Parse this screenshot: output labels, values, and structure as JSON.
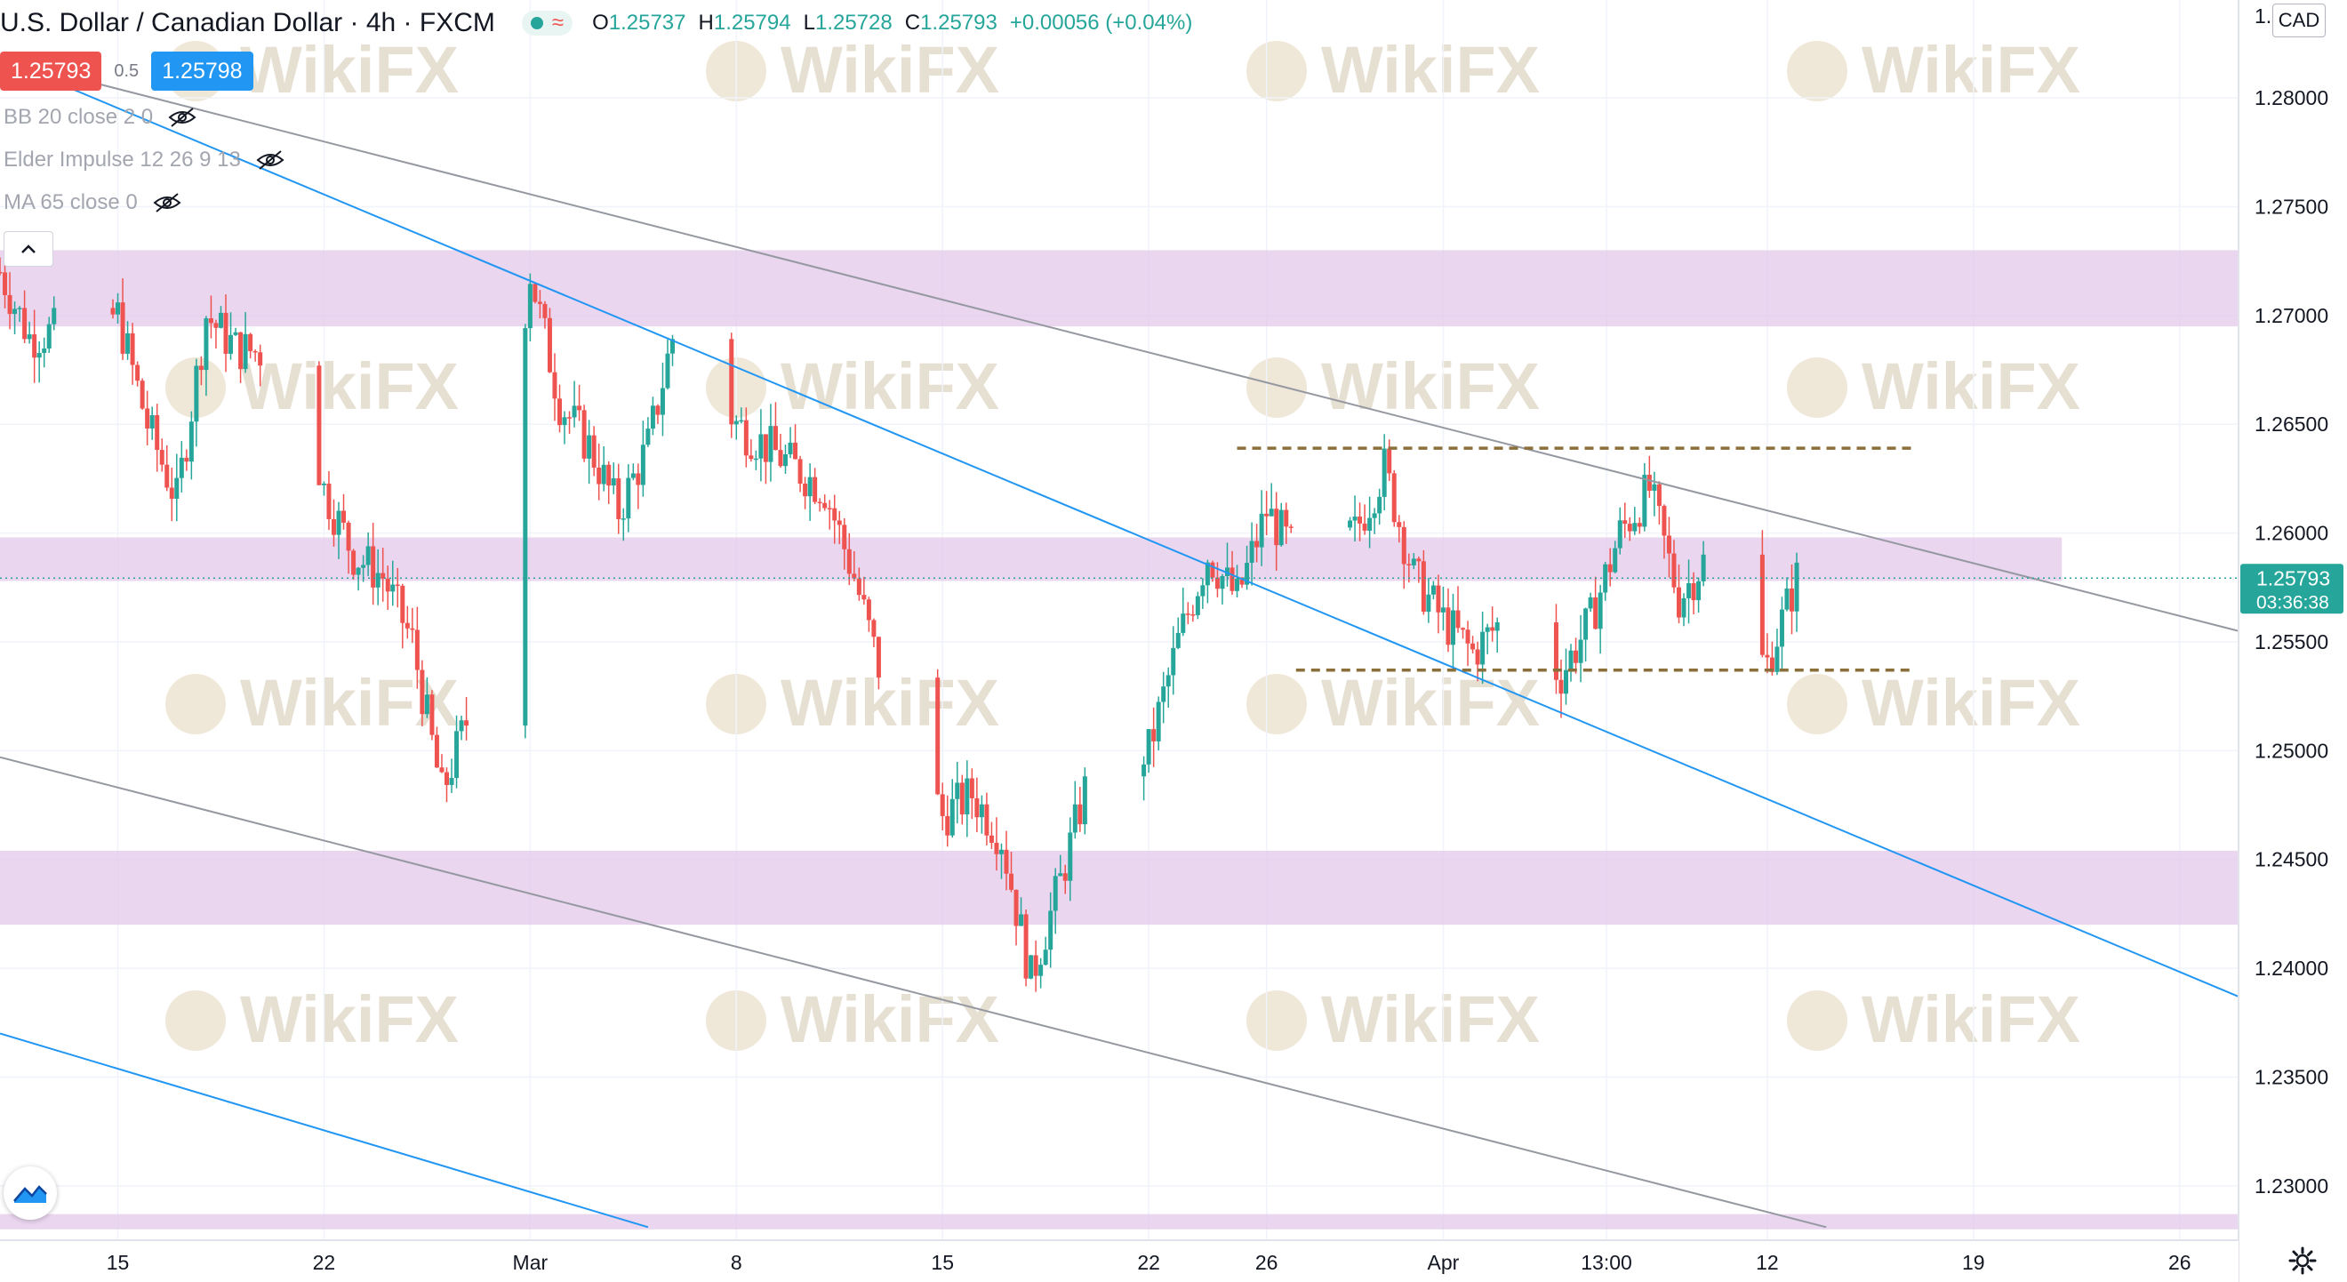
{
  "header": {
    "symbol": "U.S. Dollar / Canadian Dollar",
    "interval": "4h",
    "exchange": "FXCM",
    "ohlc": {
      "o_label": "O",
      "o": "1.25737",
      "h_label": "H",
      "h": "1.25794",
      "l_label": "L",
      "l": "1.25728",
      "c_label": "C",
      "c": "1.25793",
      "change": "+0.00056 (+0.04%)"
    },
    "sell_price": "1.25793",
    "spread": "0.5",
    "buy_price": "1.25798"
  },
  "indicators": [
    {
      "label": "BB 20 close 2 0"
    },
    {
      "label": "Elder Impulse 12 26 9 13"
    },
    {
      "label": "MA 65 close 0"
    }
  ],
  "currency": "CAD",
  "watermark": "WikiFX",
  "colors": {
    "up": "#26a69a",
    "down": "#ef5350",
    "zone": "#e1c4e8",
    "trend_gray": "#9598a1",
    "trend_blue": "#2196f3",
    "dashed": "#8b6f3a",
    "price_tag": "#26a69a"
  },
  "chart_data": {
    "type": "candlestick",
    "interval": "4h",
    "ylim": [
      1.2275,
      1.2845
    ],
    "y_ticks": [
      "1.28000",
      "1.27500",
      "1.27000",
      "1.26500",
      "1.26000",
      "1.25500",
      "1.25000",
      "1.24500",
      "1.24000",
      "1.23500",
      "1.23000"
    ],
    "y_tick_values": [
      1.28,
      1.275,
      1.27,
      1.265,
      1.26,
      1.255,
      1.25,
      1.245,
      1.24,
      1.235,
      1.23
    ],
    "top_clipped_tick": "1.",
    "x_ticks": [
      {
        "label": "15",
        "date": "2021-02-15"
      },
      {
        "label": "22",
        "date": "2021-02-22"
      },
      {
        "label": "Mar",
        "date": "2021-03-01"
      },
      {
        "label": "8",
        "date": "2021-03-08"
      },
      {
        "label": "15",
        "date": "2021-03-15"
      },
      {
        "label": "22",
        "date": "2021-03-22"
      },
      {
        "label": "26",
        "date": "2021-03-26"
      },
      {
        "label": "Apr",
        "date": "2021-04-01"
      },
      {
        "label": "13:00",
        "date": "2021-04-06 13:00"
      },
      {
        "label": "12",
        "date": "2021-04-12"
      },
      {
        "label": "19",
        "date": "2021-04-19"
      },
      {
        "label": "26",
        "date": "2021-04-26"
      }
    ],
    "x_range": [
      "2021-02-11",
      "2021-04-28"
    ],
    "last_price": "1.25793",
    "countdown": "03:36:38",
    "last_price_value": 1.25793,
    "price_path": [
      [
        "2021-02-11",
        1.272
      ],
      [
        "2021-02-12",
        1.269
      ],
      [
        "2021-02-15",
        1.27
      ],
      [
        "2021-02-16",
        1.265
      ],
      [
        "2021-02-17",
        1.2615
      ],
      [
        "2021-02-18",
        1.27
      ],
      [
        "2021-02-19",
        1.2685
      ],
      [
        "2021-02-21",
        1.268
      ],
      [
        "2021-02-22",
        1.262
      ],
      [
        "2021-02-23",
        1.259
      ],
      [
        "2021-02-24",
        1.258
      ],
      [
        "2021-02-25",
        1.255
      ],
      [
        "2021-02-26",
        1.248
      ],
      [
        "2021-02-27",
        1.252
      ],
      [
        "2021-03-01",
        1.272
      ],
      [
        "2021-03-02",
        1.266
      ],
      [
        "2021-03-03",
        1.264
      ],
      [
        "2021-03-04",
        1.261
      ],
      [
        "2021-03-05",
        1.264
      ],
      [
        "2021-03-06",
        1.27
      ],
      [
        "2021-03-08",
        1.265
      ],
      [
        "2021-03-09",
        1.264
      ],
      [
        "2021-03-10",
        1.263
      ],
      [
        "2021-03-11",
        1.262
      ],
      [
        "2021-03-12",
        1.258
      ],
      [
        "2021-03-13",
        1.253
      ],
      [
        "2021-03-15",
        1.247
      ],
      [
        "2021-03-16",
        1.248
      ],
      [
        "2021-03-17",
        1.246
      ],
      [
        "2021-03-18",
        1.2395
      ],
      [
        "2021-03-19",
        1.244
      ],
      [
        "2021-03-20",
        1.249
      ],
      [
        "2021-03-22",
        1.25
      ],
      [
        "2021-03-23",
        1.255
      ],
      [
        "2021-03-24",
        1.259
      ],
      [
        "2021-03-25",
        1.257
      ],
      [
        "2021-03-26",
        1.261
      ],
      [
        "2021-03-27",
        1.259
      ],
      [
        "2021-03-29",
        1.26
      ],
      [
        "2021-03-30",
        1.263
      ],
      [
        "2021-03-31",
        1.258
      ],
      [
        "2021-04-01",
        1.256
      ],
      [
        "2021-04-02",
        1.2545
      ],
      [
        "2021-04-03",
        1.256
      ],
      [
        "2021-04-05",
        1.2535
      ],
      [
        "2021-04-06",
        1.256
      ],
      [
        "2021-04-07",
        1.26
      ],
      [
        "2021-04-08",
        1.262
      ],
      [
        "2021-04-09",
        1.257
      ],
      [
        "2021-04-10",
        1.259
      ],
      [
        "2021-04-11",
        1.2545
      ],
      [
        "2021-04-12",
        1.254
      ],
      [
        "2021-04-13",
        1.25793
      ]
    ],
    "zones": [
      {
        "from": 1.2695,
        "to": 1.273
      },
      {
        "from": 1.2578,
        "to": 1.2598,
        "x_end": "2021-04-22"
      },
      {
        "from": 1.242,
        "to": 1.2454
      },
      {
        "from": 1.228,
        "to": 1.2287
      }
    ],
    "trendlines": [
      {
        "color": "gray",
        "from": [
          "2021-02-11",
          1.2818
        ],
        "to": [
          "2021-04-28",
          1.2555
        ]
      },
      {
        "color": "gray",
        "from": [
          "2021-02-11",
          1.2497
        ],
        "to": [
          "2021-04-14",
          1.2281
        ]
      },
      {
        "color": "blue",
        "from": [
          "2021-02-11",
          1.2818
        ],
        "to": [
          "2021-04-28",
          1.2387
        ]
      },
      {
        "color": "blue",
        "from": [
          "2021-02-11",
          1.237
        ],
        "to": [
          "2021-03-05",
          1.2281
        ]
      }
    ],
    "horizontal_levels": [
      {
        "value": 1.2639,
        "from": "2021-03-25",
        "to": "2021-04-17",
        "style": "dashed"
      },
      {
        "value": 1.2537,
        "from": "2021-03-27",
        "to": "2021-04-17",
        "style": "dashed"
      }
    ]
  }
}
